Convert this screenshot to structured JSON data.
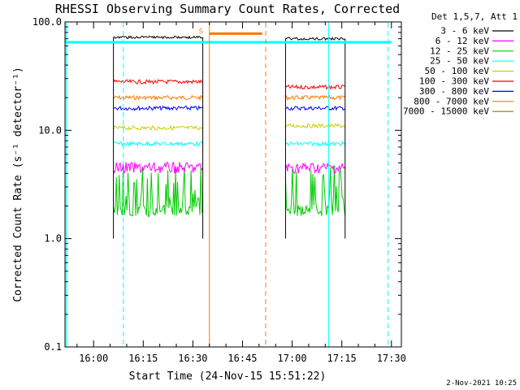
{
  "chart_data": {
    "type": "line",
    "title": "RHESSI Observing Summary Count Rates, Corrected",
    "xlabel": "Start Time (24-Nov-15 15:51:22)",
    "ylabel": "Corrected Count Rate (s⁻¹ detector⁻¹)",
    "y_scale": "log",
    "ylim": [
      0.1,
      100.0
    ],
    "y_ticks": [
      0.1,
      1.0,
      10.0,
      100.0
    ],
    "y_tick_labels": [
      "0.1",
      "1.0",
      "10.0",
      "100.0"
    ],
    "x_ticks": [
      "16:00",
      "16:15",
      "16:30",
      "16:45",
      "17:00",
      "17:15",
      "17:30"
    ],
    "x_domain": [
      "15:51:22",
      "17:33:00"
    ],
    "legend_title": "Det 1,5,7, Att 1",
    "legend_position": "top-right outside plot",
    "timestamp": "2-Nov-2021 10:25",
    "series": [
      {
        "name": "3 - 6 keV",
        "color": "#000000",
        "segments": [
          {
            "start": "16:06",
            "end": "16:33",
            "level": 72
          },
          {
            "start": "16:58",
            "end": "17:16",
            "level": 70
          }
        ]
      },
      {
        "name": "6 - 12 keV",
        "color": "#ff00ff",
        "segments": [
          {
            "start": "16:06",
            "end": "16:33",
            "level": 4.5
          },
          {
            "start": "16:58",
            "end": "17:16",
            "level": 4.5
          }
        ]
      },
      {
        "name": "12 - 25 keV",
        "color": "#00cc00",
        "segments": [
          {
            "start": "16:06",
            "end": "16:33",
            "level": 1.8
          },
          {
            "start": "16:58",
            "end": "17:16",
            "level": 1.8
          }
        ]
      },
      {
        "name": "25 - 50 keV",
        "color": "#00ffff",
        "segments": [
          {
            "start": "16:06",
            "end": "16:33",
            "level": 7.5
          },
          {
            "start": "16:58",
            "end": "17:16",
            "level": 7.5
          }
        ]
      },
      {
        "name": "50 - 100 keV",
        "color": "#cccc00",
        "segments": [
          {
            "start": "16:06",
            "end": "16:33",
            "level": 10.5
          },
          {
            "start": "16:58",
            "end": "17:16",
            "level": 11
          }
        ]
      },
      {
        "name": "100 - 300 keV",
        "color": "#ff0000",
        "segments": [
          {
            "start": "16:06",
            "end": "16:33",
            "level": 28
          },
          {
            "start": "16:58",
            "end": "17:16",
            "level": 25
          }
        ]
      },
      {
        "name": "300 - 800 keV",
        "color": "#0000ff",
        "segments": [
          {
            "start": "16:06",
            "end": "16:33",
            "level": 16
          },
          {
            "start": "16:58",
            "end": "17:16",
            "level": 16
          }
        ]
      },
      {
        "name": "800 - 7000 keV",
        "color": "#ff7700",
        "segments": [
          {
            "start": "16:06",
            "end": "16:33",
            "level": 20
          },
          {
            "start": "16:58",
            "end": "17:16",
            "level": 20
          }
        ]
      },
      {
        "name": "7000 - 15000 keV",
        "color": "#808000",
        "segments": []
      }
    ],
    "markers": [
      {
        "kind": "cyan-solid",
        "time": "15:51:45",
        "color": "#00ffff",
        "style": "solid"
      },
      {
        "kind": "cyan-dashed",
        "time": "16:09",
        "color": "#00ffff",
        "style": "dashed"
      },
      {
        "kind": "orange-solid",
        "time": "16:35",
        "color": "#ff7700",
        "style": "solid"
      },
      {
        "kind": "orange-dashed",
        "time": "16:52",
        "color": "#ff7700",
        "style": "dashed"
      },
      {
        "kind": "cyan-solid",
        "time": "17:11",
        "color": "#00ffff",
        "style": "solid"
      },
      {
        "kind": "cyan-dashed",
        "time": "17:29",
        "color": "#00ffff",
        "style": "dashed"
      }
    ],
    "cyan_line_level": 65,
    "cyan_line_range": [
      "15:51:22",
      "17:30"
    ],
    "orange_bar": {
      "start": "16:35",
      "end": "16:51",
      "level": 78
    },
    "annotation": {
      "text": "S",
      "time": "16:33",
      "level": 85
    }
  }
}
